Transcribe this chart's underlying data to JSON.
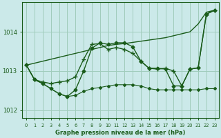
{
  "xlabel": "Graphe pression niveau de la mer (hPa)",
  "x_ticks": [
    0,
    1,
    2,
    3,
    4,
    5,
    6,
    7,
    8,
    9,
    10,
    11,
    12,
    13,
    14,
    15,
    16,
    17,
    18,
    19,
    20,
    21,
    22,
    23
  ],
  "ylim": [
    1011.8,
    1014.75
  ],
  "yticks": [
    1012,
    1013,
    1014
  ],
  "bg_color": "#cbe9e9",
  "grid_color": "#a0ccbb",
  "line_color": "#1a5c1a",
  "series": [
    {
      "x": [
        0,
        1,
        2,
        3,
        4,
        5,
        6,
        7,
        8,
        9,
        10,
        11,
        12,
        13,
        14,
        15,
        16,
        17,
        18,
        19,
        20,
        21,
        22,
        23
      ],
      "y": [
        1013.15,
        1013.2,
        1013.25,
        1013.3,
        1013.35,
        1013.4,
        1013.45,
        1013.5,
        1013.55,
        1013.6,
        1013.65,
        1013.68,
        1013.7,
        1013.73,
        1013.76,
        1013.79,
        1013.82,
        1013.85,
        1013.9,
        1013.95,
        1014.0,
        1014.2,
        1014.5,
        1014.55
      ],
      "marker": null,
      "lw": 1.0
    },
    {
      "x": [
        0,
        1,
        2,
        3,
        4,
        5,
        6,
        7,
        8,
        9,
        10,
        11,
        12,
        13,
        14,
        15,
        16,
        17,
        18,
        19,
        20,
        21,
        22,
        23
      ],
      "y": [
        1013.15,
        1012.78,
        1012.72,
        1012.68,
        1012.72,
        1012.75,
        1012.85,
        1013.3,
        1013.68,
        1013.7,
        1013.55,
        1013.6,
        1013.55,
        1013.45,
        1013.25,
        1013.07,
        1013.05,
        1013.07,
        1013.0,
        1012.62,
        1013.05,
        1013.08,
        1014.45,
        1014.55
      ],
      "marker": "+",
      "ms": 4,
      "lw": 1.0
    },
    {
      "x": [
        0,
        1,
        2,
        3,
        4,
        5,
        6,
        7,
        8,
        9,
        10,
        11,
        12,
        13,
        14,
        15,
        16,
        17,
        18,
        19,
        20,
        21,
        22,
        23
      ],
      "y": [
        1013.15,
        1012.78,
        1012.68,
        1012.55,
        1012.42,
        1012.35,
        1012.52,
        1013.0,
        1013.58,
        1013.72,
        1013.68,
        1013.72,
        1013.72,
        1013.62,
        1013.25,
        1013.07,
        1013.07,
        1013.05,
        1012.62,
        1012.62,
        1013.05,
        1013.08,
        1014.45,
        1014.55
      ],
      "marker": "D",
      "ms": 2.5,
      "lw": 1.0
    },
    {
      "x": [
        0,
        1,
        2,
        3,
        4,
        5,
        6,
        7,
        8,
        9,
        10,
        11,
        12,
        13,
        14,
        15,
        16,
        17,
        18,
        19,
        20,
        21,
        22,
        23
      ],
      "y": [
        1013.15,
        1012.78,
        1012.68,
        1012.55,
        1012.42,
        1012.35,
        1012.38,
        1012.48,
        1012.55,
        1012.58,
        1012.62,
        1012.65,
        1012.65,
        1012.65,
        1012.62,
        1012.55,
        1012.52,
        1012.52,
        1012.52,
        1012.52,
        1012.52,
        1012.52,
        1012.55,
        1012.55
      ],
      "marker": "D",
      "ms": 2.0,
      "lw": 0.8
    }
  ]
}
